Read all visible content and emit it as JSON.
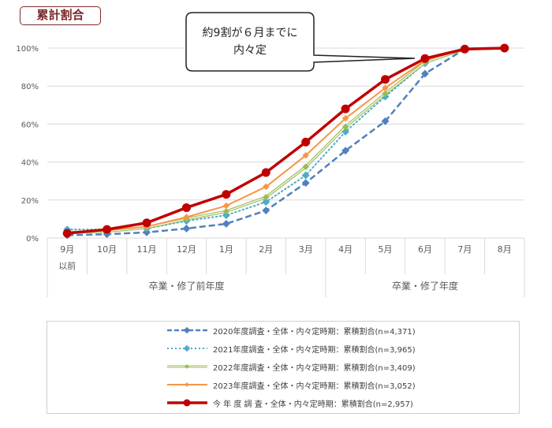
{
  "title_badge": "累計割合",
  "callout": {
    "line1": "約9割が６月までに",
    "line2": "内々定"
  },
  "chart_data": {
    "type": "line",
    "title": "累計割合",
    "xlabel": "",
    "ylabel": "",
    "ylim": [
      0,
      100
    ],
    "y_ticks": [
      "0%",
      "20%",
      "40%",
      "60%",
      "80%",
      "100%"
    ],
    "grid": true,
    "legend_position": "bottom",
    "categories": [
      "9月 以前",
      "10月",
      "11月",
      "12月",
      "1月",
      "2月",
      "3月",
      "4月",
      "5月",
      "6月",
      "7月",
      "8月"
    ],
    "category_lines": [
      [
        "9月",
        "以前"
      ],
      [
        "10月"
      ],
      [
        "11月"
      ],
      [
        "12月"
      ],
      [
        "1月"
      ],
      [
        "2月"
      ],
      [
        "3月"
      ],
      [
        "4月"
      ],
      [
        "5月"
      ],
      [
        "6月"
      ],
      [
        "7月"
      ],
      [
        "8月"
      ]
    ],
    "groups": [
      {
        "label": "卒業・修了前年度",
        "span": [
          0,
          6
        ]
      },
      {
        "label": "卒業・修了年度",
        "span": [
          7,
          11
        ]
      }
    ],
    "annotations": [
      "約9割が６月までに内々定"
    ],
    "series": [
      {
        "name": "2020年度調査・全体・内々定時期：累積割合(n=4,371)",
        "color": "#4f81bd",
        "style": "dashed",
        "marker": "diamond",
        "width": 2.5,
        "values": [
          1.5,
          2,
          3,
          5,
          7.5,
          14.5,
          29,
          46,
          61.5,
          86.5,
          99.5,
          100
        ]
      },
      {
        "name": "2021年度調査・全体・内々定時期：累積割合(n=3,965)",
        "color": "#4bacc6",
        "style": "dotted",
        "marker": "diamond",
        "width": 2,
        "values": [
          4.5,
          4.5,
          5,
          9,
          12,
          19,
          33,
          56,
          74.5,
          92,
          99.5,
          100
        ]
      },
      {
        "name": "2022年度調査・全体・内々定時期：累積割合(n=3,409)",
        "color": "#9bbb59",
        "style": "double",
        "marker": "diamond",
        "width": 1.5,
        "values": [
          3,
          3.5,
          5.5,
          10,
          14,
          21.5,
          37.5,
          58.5,
          76,
          92.5,
          99.5,
          100
        ]
      },
      {
        "name": "2023年度調査・全体・内々定時期：累積割合(n=3,052)",
        "color": "#f79646",
        "style": "solid",
        "marker": "diamond",
        "width": 2,
        "values": [
          3,
          4,
          6,
          11,
          17,
          27,
          43.5,
          63,
          79,
          93.5,
          99.5,
          100
        ]
      },
      {
        "name": "今年度調査・全体・内々定時期：累積割合(n=2,957)",
        "color": "#c00000",
        "style": "solid",
        "marker": "circle",
        "width": 3.5,
        "values": [
          2.5,
          4.5,
          8,
          16,
          23,
          34.5,
          50.5,
          68,
          83.5,
          94.5,
          99.5,
          100
        ]
      }
    ]
  },
  "legend": {
    "items": [
      "2020年度調査・全体・内々定時期：累積割合(n=4,371)",
      "2021年度調査・全体・内々定時期：累積割合(n=3,965)",
      "2022年度調査・全体・内々定時期：累積割合(n=3,409)",
      "2023年度調査・全体・内々定時期：累積割合(n=3,052)",
      "今 年 度 調 査・全体・内々定時期：累積割合(n=2,957)"
    ]
  }
}
